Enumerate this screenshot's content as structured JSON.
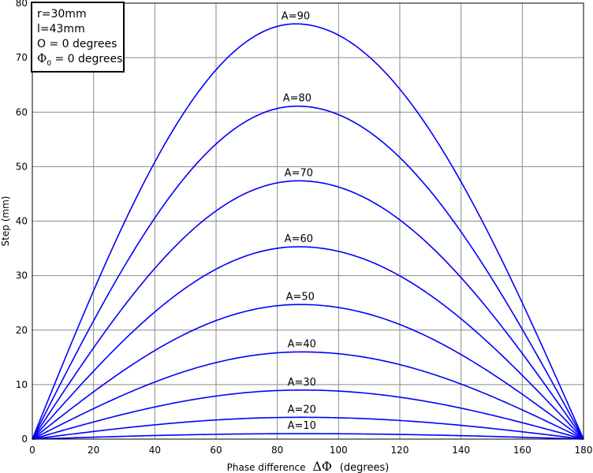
{
  "chart_data": {
    "type": "line",
    "xlabel_prefix": "Phase difference",
    "xlabel_symbol": "ΔΦ",
    "xlabel_suffix": "(degrees)",
    "ylabel": "Step (mm)",
    "xlim": [
      0,
      180
    ],
    "ylim": [
      0,
      80
    ],
    "xticks": [
      "0",
      "20",
      "40",
      "60",
      "80",
      "100",
      "120",
      "140",
      "160",
      "180"
    ],
    "yticks": [
      "0",
      "10",
      "20",
      "30",
      "40",
      "50",
      "60",
      "70",
      "80"
    ],
    "grid": true,
    "series_color": "#0000ff",
    "info_box": {
      "position": "top-left",
      "lines": [
        "r=30mm",
        "l=43mm",
        "O = 0 degrees"
      ],
      "phi_symbol": "Φ",
      "phi_subscript": "0",
      "phi_text": " = 0 degrees"
    },
    "series": [
      {
        "name": "A=10",
        "peak_x": 88,
        "peak_y": 1.0
      },
      {
        "name": "A=20",
        "peak_x": 88,
        "peak_y": 4.0
      },
      {
        "name": "A=30",
        "peak_x": 88,
        "peak_y": 9.0
      },
      {
        "name": "A=40",
        "peak_x": 88,
        "peak_y": 16.0
      },
      {
        "name": "A=50",
        "peak_x": 87.5,
        "peak_y": 24.7
      },
      {
        "name": "A=60",
        "peak_x": 87,
        "peak_y": 35.3
      },
      {
        "name": "A=70",
        "peak_x": 87,
        "peak_y": 47.4
      },
      {
        "name": "A=80",
        "peak_x": 86.5,
        "peak_y": 61.1
      },
      {
        "name": "A=90",
        "peak_x": 86,
        "peak_y": 76.2
      }
    ]
  }
}
